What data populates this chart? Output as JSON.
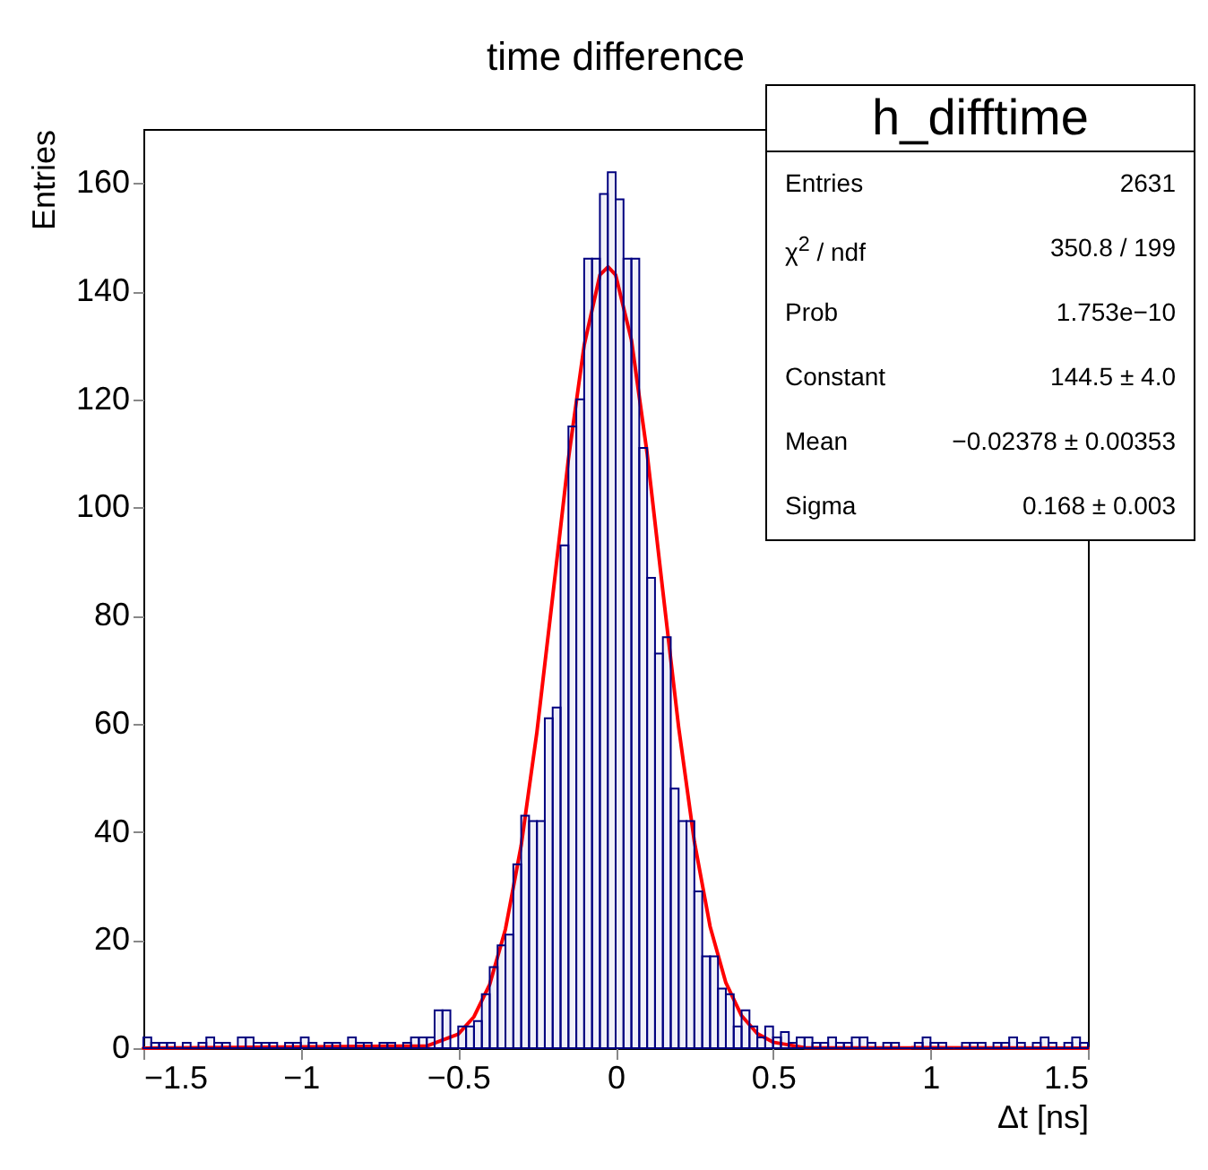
{
  "chart_data": {
    "type": "histogram",
    "title": "time difference",
    "xlabel": "Δt [ns]",
    "ylabel": "Entries",
    "bins": [
      -1.5,
      -1.475,
      -1.45,
      -1.425,
      -1.4,
      -1.375,
      -1.35,
      -1.325,
      -1.3,
      -1.275,
      -1.25,
      -1.225,
      -1.2,
      -1.175,
      -1.15,
      -1.125,
      -1.1,
      -1.075,
      -1.05,
      -1.025,
      -1,
      -0.975,
      -0.95,
      -0.925,
      -0.9,
      -0.875,
      -0.85,
      -0.825,
      -0.8,
      -0.775,
      -0.75,
      -0.725,
      -0.7,
      -0.675,
      -0.65,
      -0.625,
      -0.6,
      -0.575,
      -0.55,
      -0.525,
      -0.5,
      -0.475,
      -0.45,
      -0.425,
      -0.4,
      -0.375,
      -0.35,
      -0.325,
      -0.3,
      -0.275,
      -0.25,
      -0.225,
      -0.2,
      -0.175,
      -0.15,
      -0.125,
      -0.1,
      -0.075,
      -0.05,
      -0.025,
      0,
      0.025,
      0.05,
      0.075,
      0.1,
      0.125,
      0.15,
      0.175,
      0.2,
      0.225,
      0.25,
      0.275,
      0.3,
      0.325,
      0.35,
      0.375,
      0.4,
      0.425,
      0.45,
      0.475,
      0.5,
      0.525,
      0.55,
      0.575,
      0.6,
      0.625,
      0.65,
      0.675,
      0.7,
      0.725,
      0.75,
      0.775,
      0.8,
      0.825,
      0.85,
      0.875,
      0.9,
      0.925,
      0.95,
      0.975,
      1,
      1.025,
      1.05,
      1.075,
      1.1,
      1.125,
      1.15,
      1.175,
      1.2,
      1.225,
      1.25,
      1.275,
      1.3,
      1.325,
      1.35,
      1.375,
      1.4,
      1.425,
      1.45,
      1.475,
      1.5
    ],
    "values": [
      2,
      1,
      1,
      1,
      0,
      1,
      0,
      1,
      2,
      1,
      1,
      0,
      2,
      2,
      1,
      1,
      1,
      0,
      1,
      1,
      2,
      1,
      0,
      1,
      1,
      0,
      2,
      1,
      1,
      0,
      1,
      1,
      0,
      1,
      2,
      2,
      2,
      7,
      7,
      0,
      4,
      4,
      5,
      10,
      15,
      19,
      21,
      34,
      43,
      42,
      42,
      61,
      63,
      93,
      115,
      120,
      146,
      146,
      158,
      162,
      157,
      146,
      146,
      111,
      87,
      73,
      76,
      48,
      42,
      42,
      29,
      17,
      17,
      11,
      10,
      4,
      7,
      4,
      2,
      4,
      2,
      3,
      1,
      2,
      2,
      1,
      1,
      2,
      1,
      1,
      2,
      2,
      1,
      0,
      1,
      1,
      0,
      0,
      1,
      2,
      1,
      1,
      0,
      0,
      1,
      1,
      1,
      0,
      1,
      1,
      2,
      1,
      0,
      1,
      2,
      1,
      0,
      1,
      2,
      1
    ],
    "color": "#000080",
    "series": [
      {
        "type": "line",
        "color": "#ff0000",
        "x": [
          -1.5,
          -0.6,
          -0.5,
          -0.45,
          -0.4,
          -0.35,
          -0.3,
          -0.25,
          -0.2,
          -0.15,
          -0.1,
          -0.05,
          -0.024,
          0,
          0.05,
          0.1,
          0.15,
          0.2,
          0.25,
          0.3,
          0.35,
          0.4,
          0.45,
          0.5,
          0.6,
          1.5
        ],
        "values": [
          0,
          0.4,
          2.6,
          5.8,
          11.8,
          22,
          37.5,
          58.5,
          83.5,
          109,
          130,
          143,
          144.5,
          143,
          131,
          110,
          84.5,
          59.4,
          38.2,
          22.5,
          12.1,
          6,
          2.7,
          1.1,
          0.1,
          0
        ]
      }
    ],
    "xlim": [
      -1.5,
      1.5
    ],
    "xticks": [
      -1.5,
      -1,
      -0.5,
      0,
      0.5,
      1,
      1.5
    ],
    "ylim": [
      0,
      170
    ],
    "yticks": [
      0,
      20,
      40,
      60,
      80,
      100,
      120,
      140,
      160
    ],
    "grid": false,
    "annotations": [
      "h_difftime",
      "Entries",
      "2631",
      "χ$^{2}$ / ndf",
      "350.8 / 199",
      "Prob",
      "1.753e−10",
      "Constant",
      "144.5 ± 4.0",
      "Mean",
      "−0.02378 ± 0.00353",
      "Sigma",
      "0.168 ± 0.003"
    ]
  }
}
